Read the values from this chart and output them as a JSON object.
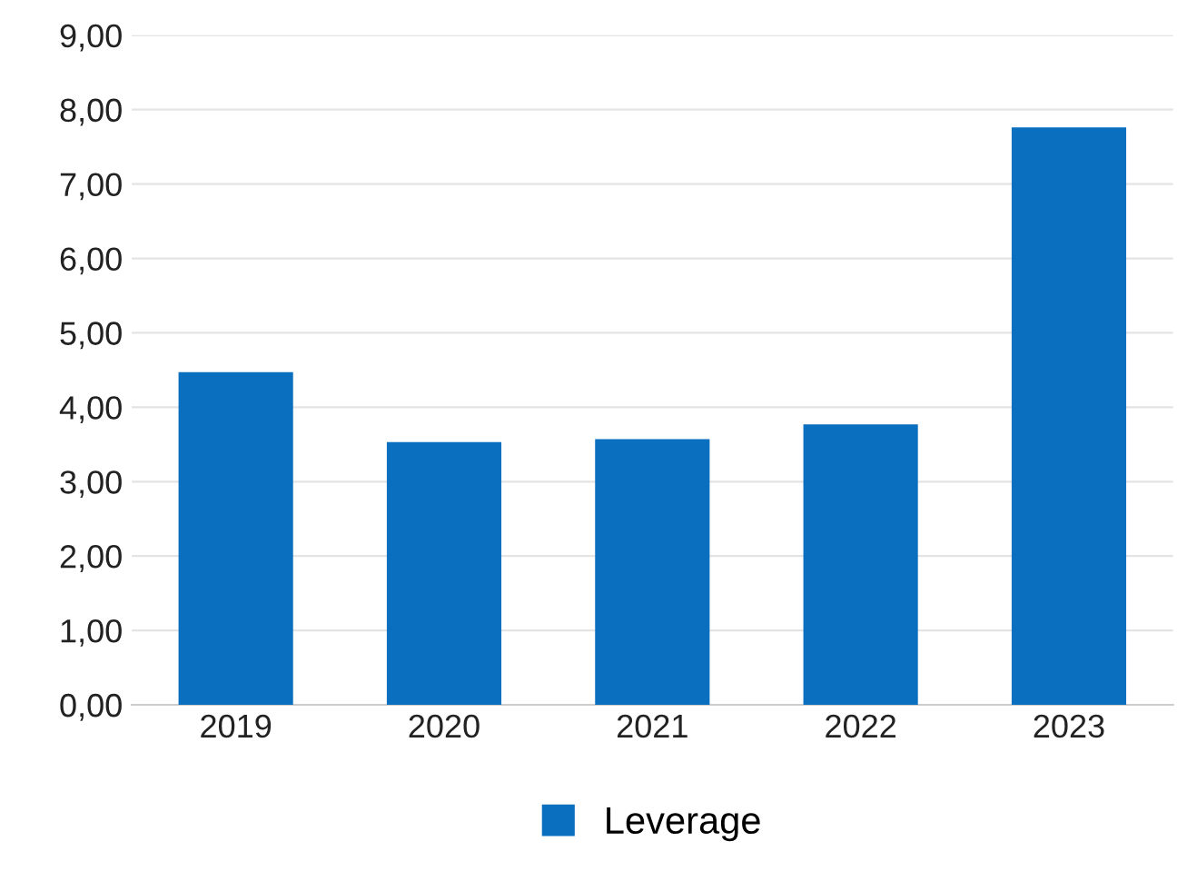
{
  "chart_data": {
    "type": "bar",
    "categories": [
      "2019",
      "2020",
      "2021",
      "2022",
      "2023"
    ],
    "series": [
      {
        "name": "Leverage",
        "color": "#0b6fc0",
        "values": [
          4.47,
          3.53,
          3.57,
          3.77,
          7.76
        ]
      }
    ],
    "ylim": [
      0,
      9
    ],
    "yticks": [
      {
        "value": 0,
        "label": "0,00"
      },
      {
        "value": 1,
        "label": "1,00"
      },
      {
        "value": 2,
        "label": "2,00"
      },
      {
        "value": 3,
        "label": "3,00"
      },
      {
        "value": 4,
        "label": "4,00"
      },
      {
        "value": 5,
        "label": "5,00"
      },
      {
        "value": 6,
        "label": "6,00"
      },
      {
        "value": 7,
        "label": "7,00"
      },
      {
        "value": 8,
        "label": "8,00"
      },
      {
        "value": 9,
        "label": "9,00"
      }
    ],
    "grid": "y",
    "legend": "bottom"
  }
}
